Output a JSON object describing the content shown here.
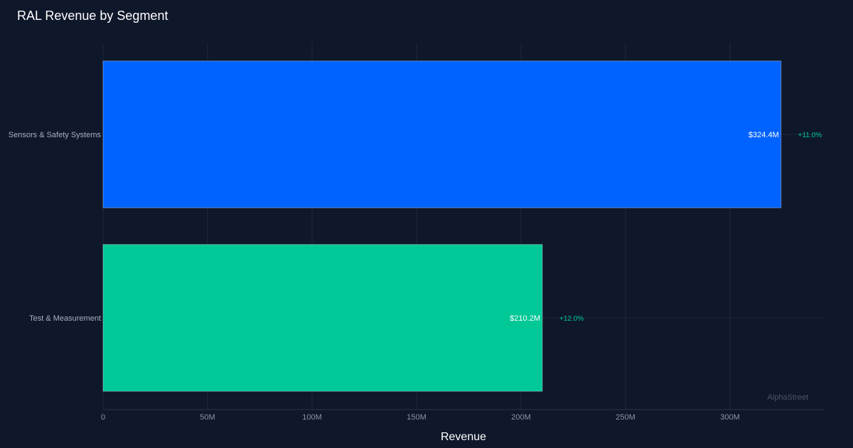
{
  "chart_data": {
    "type": "bar",
    "orientation": "horizontal",
    "title": "RAL Revenue by Segment",
    "xlabel": "Revenue",
    "ylabel": "",
    "xlim": [
      0,
      340
    ],
    "x_unit": "M",
    "x_ticks": [
      0,
      50,
      100,
      150,
      200,
      250,
      300
    ],
    "x_tick_labels": [
      "0",
      "50M",
      "100M",
      "150M",
      "200M",
      "250M",
      "300M"
    ],
    "grid": true,
    "categories": [
      "Sensors & Safety Systems",
      "Test & Measurement"
    ],
    "values": [
      324.4,
      210.2
    ],
    "value_labels": [
      "$324.4M",
      "$210.2M"
    ],
    "change_labels": [
      "+11.0%",
      "+12.0%"
    ],
    "colors": [
      "#0062ff",
      "#00c897"
    ],
    "change_color": "#00c897"
  },
  "watermark": "AlphaStreet"
}
